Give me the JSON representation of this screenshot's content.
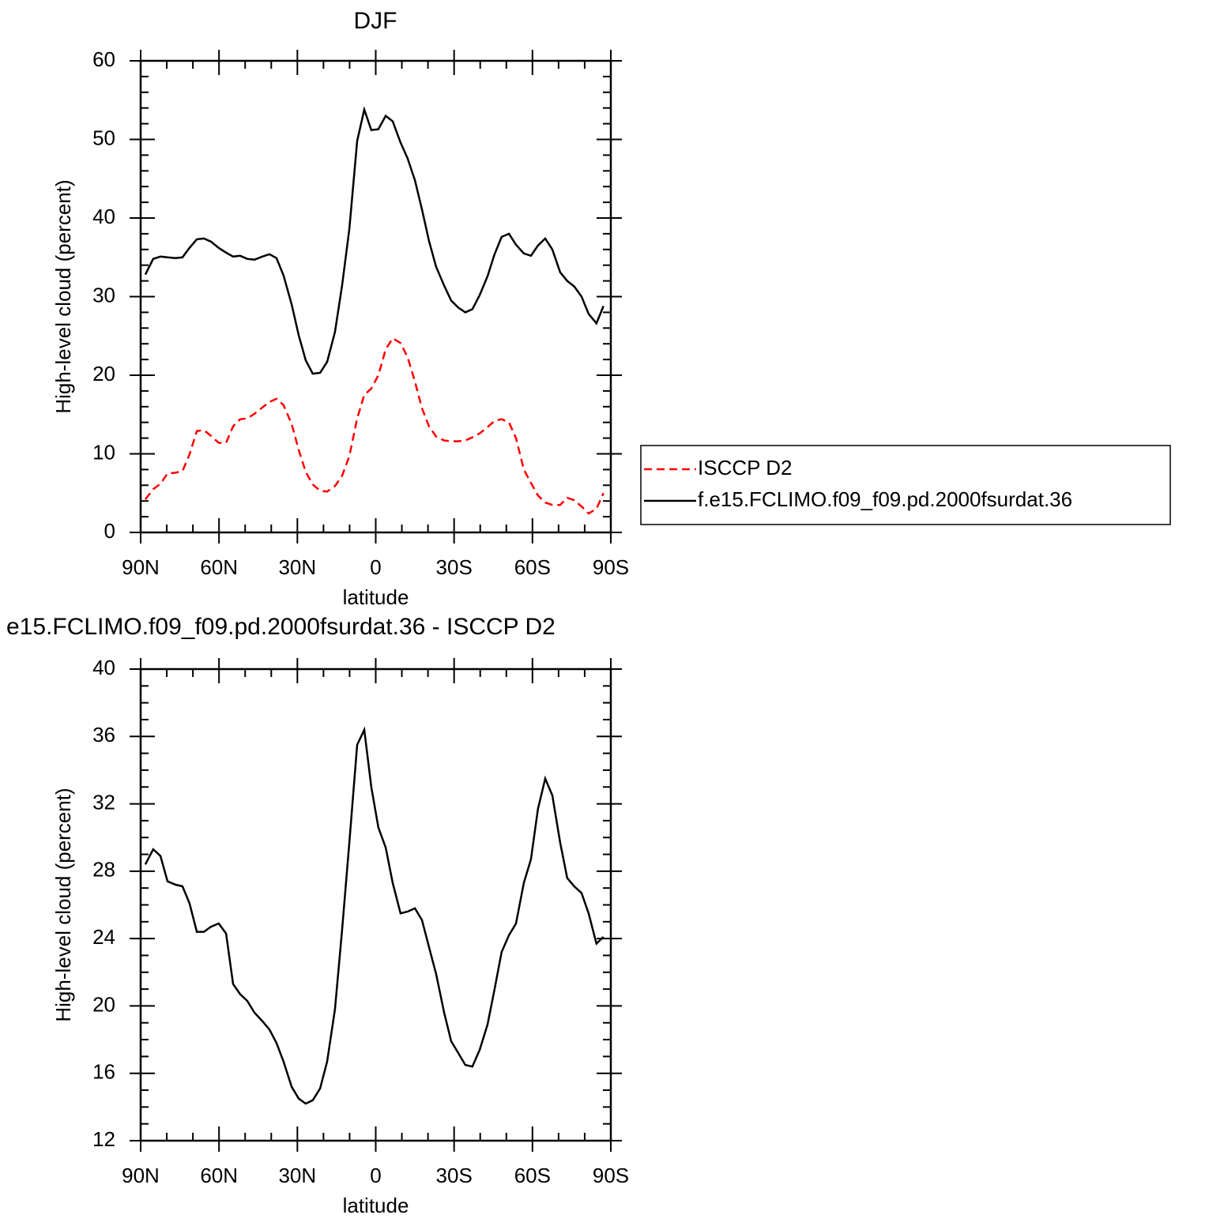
{
  "chart_data": [
    {
      "type": "line",
      "title": "DJF",
      "xlabel": "latitude",
      "ylabel": "High-level cloud (percent)",
      "x": [
        88.2,
        85.2,
        82.4,
        79.7,
        76.7,
        74.0,
        71.3,
        68.5,
        65.8,
        63.1,
        60.1,
        57.3,
        54.6,
        51.9,
        49.2,
        46.4,
        43.4,
        40.7,
        38.0,
        35.3,
        32.2,
        29.5,
        26.8,
        24.1,
        21.3,
        18.6,
        15.6,
        12.9,
        10.1,
        7.1,
        4.4,
        1.7,
        -1.0,
        -3.8,
        -6.5,
        -9.5,
        -12.2,
        -15.0,
        -17.7,
        -20.4,
        -23.1,
        -26.2,
        -28.9,
        -31.6,
        -34.3,
        -37.0,
        -39.8,
        -42.8,
        -45.5,
        -48.2,
        -51.0,
        -53.7,
        -56.7,
        -59.4,
        -62.1,
        -64.9,
        -67.6,
        -70.6,
        -73.3,
        -76.0,
        -78.8,
        -81.5,
        -84.5,
        -87.2
      ],
      "series": [
        {
          "name": "ISCCP D2",
          "color": "#ff0000",
          "dashed": true,
          "values": [
            4.2,
            5.5,
            6.2,
            7.5,
            7.6,
            7.8,
            9.9,
            12.9,
            13.0,
            12.3,
            11.4,
            11.4,
            13.5,
            14.4,
            14.5,
            15.1,
            15.9,
            16.6,
            17.0,
            16.2,
            13.8,
            10.5,
            7.7,
            6.1,
            5.3,
            5.2,
            5.9,
            7.2,
            9.7,
            14.5,
            17.5,
            18.3,
            20.0,
            23.3,
            24.7,
            24.1,
            22.3,
            19.2,
            15.8,
            13.5,
            12.2,
            11.7,
            11.6,
            11.6,
            11.7,
            12.1,
            12.6,
            13.4,
            14.2,
            14.4,
            14.0,
            12.0,
            8.0,
            6.3,
            4.7,
            3.8,
            3.5,
            3.5,
            4.4,
            4.1,
            3.3,
            2.4,
            3.0,
            5.0
          ]
        },
        {
          "name": "f.e15.FCLIMO.f09_f09.pd.2000fsurdat.36",
          "color": "#000000",
          "dashed": false,
          "values": [
            32.8,
            34.8,
            35.1,
            35.0,
            34.9,
            35.0,
            36.2,
            37.3,
            37.4,
            37.0,
            36.2,
            35.6,
            35.1,
            35.2,
            34.8,
            34.7,
            35.1,
            35.4,
            34.9,
            32.7,
            29.0,
            25.1,
            21.9,
            20.2,
            20.3,
            21.7,
            25.5,
            31.4,
            38.6,
            49.8,
            53.8,
            51.2,
            51.3,
            53.0,
            52.3,
            49.6,
            47.6,
            44.8,
            41.1,
            37.1,
            33.8,
            31.4,
            29.5,
            28.6,
            28.0,
            28.4,
            30.2,
            32.6,
            35.4,
            37.6,
            38.0,
            36.6,
            35.5,
            35.2,
            36.5,
            37.4,
            36.0,
            33.1,
            32.0,
            31.3,
            30.0,
            27.8,
            26.6,
            28.8
          ]
        }
      ],
      "xlim": [
        90,
        -90
      ],
      "xticks": [
        {
          "value": 90,
          "label": "90N"
        },
        {
          "value": 60,
          "label": "60N"
        },
        {
          "value": 30,
          "label": "30N"
        },
        0,
        {
          "value": -30,
          "label": "30S"
        },
        {
          "value": -60,
          "label": "60S"
        },
        {
          "value": -90,
          "label": "90S"
        }
      ],
      "ylim": [
        0,
        60
      ],
      "yticks": [
        0,
        10,
        20,
        30,
        40,
        50,
        60
      ],
      "x_minor_divisions": 3,
      "y_minor_divisions": 5,
      "legend": "right"
    },
    {
      "type": "line",
      "title": "e15.FCLIMO.f09_f09.pd.2000fsurdat.36 - ISCCP D2",
      "xlabel": "latitude",
      "ylabel": "High-level cloud (percent)",
      "x": [
        88.2,
        85.2,
        82.4,
        79.7,
        76.7,
        74.0,
        71.3,
        68.5,
        65.8,
        63.1,
        60.1,
        57.3,
        54.6,
        51.9,
        49.2,
        46.4,
        43.4,
        40.7,
        38.0,
        35.3,
        32.2,
        29.5,
        26.8,
        24.1,
        21.3,
        18.6,
        15.6,
        12.9,
        10.1,
        7.1,
        4.4,
        1.7,
        -1.0,
        -3.8,
        -6.5,
        -9.5,
        -12.2,
        -15.0,
        -17.7,
        -20.4,
        -23.1,
        -26.2,
        -28.9,
        -31.6,
        -34.3,
        -37.0,
        -39.8,
        -42.8,
        -45.5,
        -48.2,
        -51.0,
        -53.7,
        -56.7,
        -59.4,
        -62.1,
        -64.9,
        -67.6,
        -70.6,
        -73.3,
        -76.0,
        -78.8,
        -81.5,
        -84.5,
        -87.2
      ],
      "values": [
        28.4,
        29.3,
        28.9,
        27.4,
        27.2,
        27.1,
        26.1,
        24.4,
        24.4,
        24.7,
        24.9,
        24.3,
        21.3,
        20.7,
        20.3,
        19.6,
        19.1,
        18.6,
        17.8,
        16.7,
        15.2,
        14.5,
        14.2,
        14.4,
        15.1,
        16.7,
        19.8,
        24.5,
        29.7,
        35.5,
        36.4,
        33.0,
        30.6,
        29.4,
        27.3,
        25.5,
        25.6,
        25.8,
        25.1,
        23.5,
        21.9,
        19.6,
        17.9,
        17.2,
        16.5,
        16.4,
        17.4,
        18.9,
        21.0,
        23.2,
        24.2,
        24.9,
        27.3,
        28.7,
        31.7,
        33.5,
        32.5,
        29.7,
        27.6,
        27.1,
        26.7,
        25.5,
        23.7,
        24.1
      ],
      "color": "#000000",
      "xlim": [
        90,
        -90
      ],
      "xticks": [
        {
          "value": 90,
          "label": "90N"
        },
        {
          "value": 60,
          "label": "60N"
        },
        {
          "value": 30,
          "label": "30N"
        },
        0,
        {
          "value": -30,
          "label": "30S"
        },
        {
          "value": -60,
          "label": "60S"
        },
        {
          "value": -90,
          "label": "90S"
        }
      ],
      "ylim": [
        12,
        40
      ],
      "yticks": [
        12,
        16,
        20,
        24,
        28,
        32,
        36,
        40
      ],
      "x_minor_divisions": 3,
      "y_minor_divisions": 4
    }
  ]
}
